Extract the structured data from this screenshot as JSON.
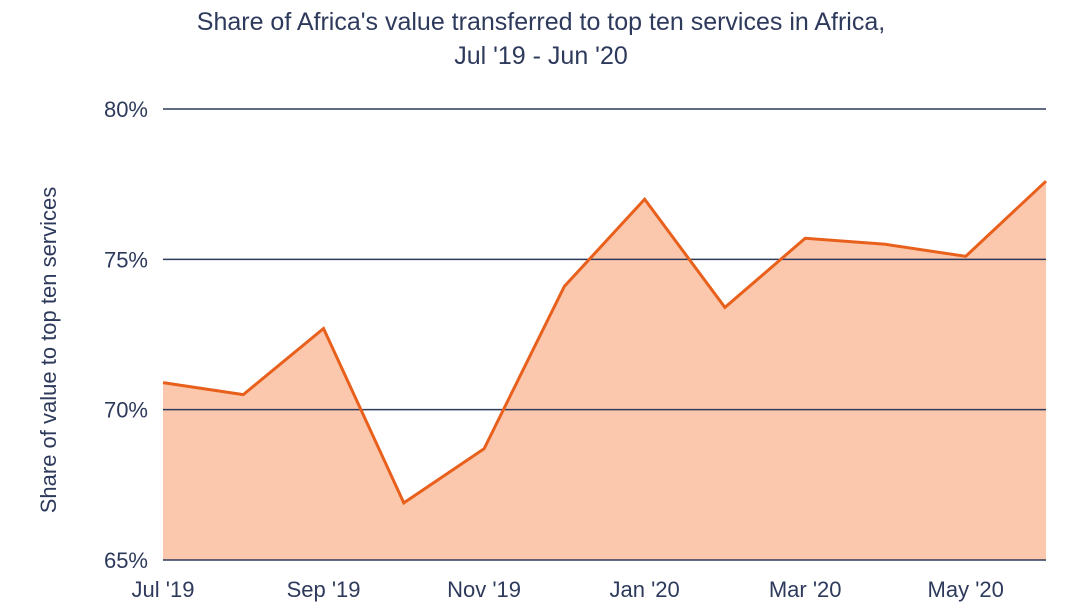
{
  "chart_data": {
    "type": "area",
    "title": [
      "Share of Africa's value transferred to top ten services in Africa,",
      "Jul '19 - Jun '20"
    ],
    "xlabel": "",
    "ylabel": "Share of value to top ten services",
    "x": [
      "Jul '19",
      "Aug '19",
      "Sep '19",
      "Oct '19",
      "Nov '19",
      "Dec '19",
      "Jan '20",
      "Feb '20",
      "Mar '20",
      "Apr '20",
      "May '20",
      "Jun '20"
    ],
    "x_tick_labels": [
      "Jul '19",
      "Sep '19",
      "Nov '19",
      "Jan '20",
      "Mar '20",
      "May '20"
    ],
    "values": [
      70.9,
      70.5,
      72.7,
      66.9,
      68.7,
      74.1,
      77.0,
      73.4,
      75.7,
      75.5,
      75.1,
      77.6
    ],
    "ylim": [
      65,
      80
    ],
    "y_ticks": [
      65,
      70,
      75,
      80
    ],
    "y_tick_labels": [
      "65%",
      "70%",
      "75%",
      "80%"
    ],
    "grid": true,
    "legend": "none",
    "colors": {
      "line": "#e8601c",
      "fill": "#fcc8ad",
      "grid": "#2e3a5c",
      "text": "#2e3a5c"
    }
  }
}
